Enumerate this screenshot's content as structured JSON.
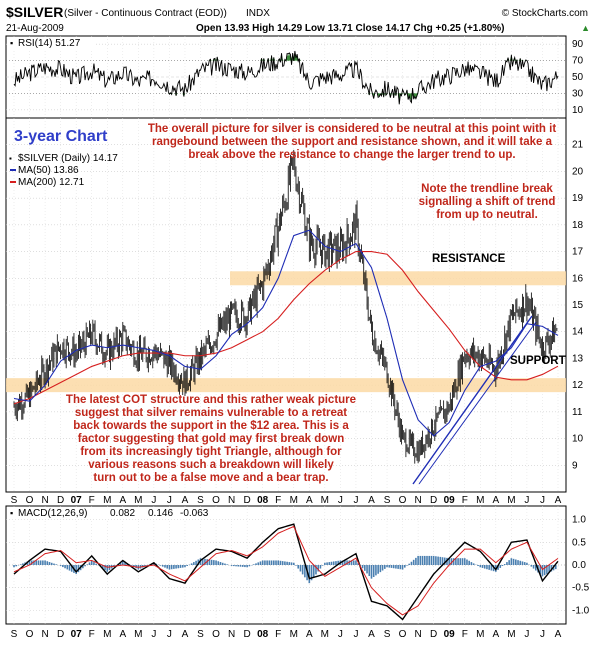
{
  "header": {
    "symbol": "$SILVER",
    "description": "(Silver - Continuous Contract (EOD))",
    "exchange": "INDX",
    "site": "© StockCharts.com",
    "date": "21-Aug-2009",
    "ohlc": "Open 13.93  High 14.29  Low 13.71  Close 14.17  Chg +0.25 (+1.80%)",
    "ohlc_arrow": "▲"
  },
  "rsi_panel": {
    "label": "RSI(14) 51.27",
    "ticks": [
      "90",
      "70",
      "50",
      "30",
      "10"
    ]
  },
  "price_panel": {
    "title_overlay": "3-year Chart",
    "legend": [
      {
        "text": "$SILVER (Daily) 14.17",
        "color": "#000000"
      },
      {
        "text": "MA(50) 13.86",
        "color": "#1f2db5"
      },
      {
        "text": "MA(200) 12.71",
        "color": "#d61f1f"
      }
    ],
    "ticks": [
      "21",
      "20",
      "19",
      "18",
      "17",
      "16",
      "15",
      "14",
      "13",
      "12",
      "11",
      "10",
      "9"
    ],
    "resistance_label": "RESISTANCE",
    "support_label": "SUPPORT",
    "resistance_level": 16,
    "support_level": 12,
    "note_top": [
      "The overall picture for silver is considered to be neutral at this point with it",
      "rangebound between the support and resistance shown, and it will take a",
      "break above the resistance to change the larger trend to up."
    ],
    "note_right": [
      "Note the trendline break",
      "signalling a shift of trend",
      "from up to neutral."
    ],
    "note_bottom": [
      "The latest COT structure and this rather weak picture",
      "suggest that silver remains vulnerable to a retreat",
      "back towards the support in the $12 area. This is a",
      "factor suggesting that gold may first break down",
      "from its increasingly tight Triangle, although for",
      "various reasons such a breakdown will likely",
      "turn out to be a false move and a bear trap."
    ]
  },
  "macd_panel": {
    "label": "MACD(12,26,9)",
    "v1": "0.082",
    "v2": "0.146",
    "v3": "-0.063",
    "ticks": [
      "1.0",
      "0.5",
      "0.0",
      "-0.5",
      "-1.0"
    ]
  },
  "x_axis": {
    "months": [
      "S",
      "O",
      "N",
      "D",
      "07",
      "F",
      "M",
      "A",
      "M",
      "J",
      "J",
      "A",
      "S",
      "O",
      "N",
      "D",
      "08",
      "F",
      "M",
      "A",
      "M",
      "J",
      "J",
      "A",
      "S",
      "O",
      "N",
      "D",
      "09",
      "F",
      "M",
      "A",
      "M",
      "J",
      "J",
      "A"
    ]
  },
  "colors": {
    "price": "#000000",
    "ma50": "#1f2db5",
    "ma200": "#d61f1f",
    "zone": "#fbd9a4",
    "note": "#c0271b",
    "rsi_fill": "#3a8a3a",
    "macd_hist": "#4a7fb0"
  },
  "chart_data": [
    {
      "type": "line",
      "title": "$SILVER (Daily) 14.17",
      "xlabel": "",
      "ylabel": "",
      "ylim": [
        8,
        22
      ],
      "x": [
        "2006-09",
        "2006-10",
        "2006-11",
        "2006-12",
        "2007-01",
        "2007-02",
        "2007-03",
        "2007-04",
        "2007-05",
        "2007-06",
        "2007-07",
        "2007-08",
        "2007-09",
        "2007-10",
        "2007-11",
        "2007-12",
        "2008-01",
        "2008-02",
        "2008-03",
        "2008-04",
        "2008-05",
        "2008-06",
        "2008-07",
        "2008-08",
        "2008-09",
        "2008-10",
        "2008-11",
        "2008-12",
        "2009-01",
        "2009-02",
        "2009-03",
        "2009-04",
        "2009-05",
        "2009-06",
        "2009-07",
        "2009-08"
      ],
      "series": [
        {
          "name": "$SILVER (Daily) 14.17",
          "values": [
            11.2,
            11.6,
            12.6,
            13.5,
            13.2,
            13.9,
            13.2,
            13.8,
            13.1,
            13.3,
            12.8,
            12.1,
            13.0,
            13.9,
            14.6,
            14.6,
            15.8,
            17.9,
            20.3,
            17.4,
            17.0,
            17.1,
            18.0,
            14.0,
            12.5,
            10.0,
            9.5,
            10.5,
            11.2,
            13.2,
            13.1,
            12.6,
            14.5,
            15.2,
            13.4,
            14.17
          ]
        },
        {
          "name": "MA(50) 13.86",
          "values": [
            11.5,
            11.4,
            12.0,
            12.9,
            13.3,
            13.5,
            13.4,
            13.5,
            13.4,
            13.3,
            13.1,
            12.7,
            12.6,
            13.1,
            13.9,
            14.3,
            14.9,
            16.0,
            17.6,
            17.8,
            17.2,
            17.0,
            17.3,
            16.4,
            14.5,
            12.2,
            10.7,
            10.1,
            10.6,
            11.8,
            12.7,
            12.9,
            13.4,
            14.3,
            14.2,
            13.86
          ]
        },
        {
          "name": "MA(200) 12.71",
          "values": [
            11.3,
            11.5,
            11.8,
            12.1,
            12.4,
            12.7,
            12.9,
            13.1,
            13.2,
            13.2,
            13.2,
            13.1,
            13.1,
            13.2,
            13.4,
            13.7,
            14.0,
            14.5,
            15.2,
            15.8,
            16.3,
            16.7,
            17.0,
            17.0,
            16.9,
            16.3,
            15.5,
            14.8,
            14.1,
            13.3,
            12.7,
            12.3,
            12.2,
            12.2,
            12.4,
            12.71
          ]
        }
      ]
    },
    {
      "type": "line",
      "title": "RSI(14) 51.27",
      "xlabel": "",
      "ylabel": "",
      "ylim": [
        10,
        90
      ],
      "x": [
        "2006-09",
        "2006-10",
        "2006-11",
        "2006-12",
        "2007-01",
        "2007-02",
        "2007-03",
        "2007-04",
        "2007-05",
        "2007-06",
        "2007-07",
        "2007-08",
        "2007-09",
        "2007-10",
        "2007-11",
        "2007-12",
        "2008-01",
        "2008-02",
        "2008-03",
        "2008-04",
        "2008-05",
        "2008-06",
        "2008-07",
        "2008-08",
        "2008-09",
        "2008-10",
        "2008-11",
        "2008-12",
        "2009-01",
        "2009-02",
        "2009-03",
        "2009-04",
        "2009-05",
        "2009-06",
        "2009-07",
        "2009-08"
      ],
      "series": [
        {
          "name": "RSI(14) 51.27",
          "values": [
            45,
            55,
            62,
            60,
            48,
            58,
            45,
            55,
            44,
            50,
            40,
            35,
            58,
            64,
            60,
            55,
            64,
            70,
            76,
            44,
            50,
            53,
            60,
            30,
            36,
            24,
            33,
            46,
            52,
            60,
            55,
            45,
            68,
            60,
            40,
            51.27
          ]
        }
      ]
    },
    {
      "type": "line",
      "title": "MACD(12,26,9)",
      "xlabel": "",
      "ylabel": "",
      "ylim": [
        -1.3,
        1.3
      ],
      "x": [
        "2006-09",
        "2006-10",
        "2006-11",
        "2006-12",
        "2007-01",
        "2007-02",
        "2007-03",
        "2007-04",
        "2007-05",
        "2007-06",
        "2007-07",
        "2007-08",
        "2007-09",
        "2007-10",
        "2007-11",
        "2007-12",
        "2008-01",
        "2008-02",
        "2008-03",
        "2008-04",
        "2008-05",
        "2008-06",
        "2008-07",
        "2008-08",
        "2008-09",
        "2008-10",
        "2008-11",
        "2008-12",
        "2009-01",
        "2009-02",
        "2009-03",
        "2009-04",
        "2009-05",
        "2009-06",
        "2009-07",
        "2009-08"
      ],
      "series": [
        {
          "name": "MACD",
          "values": [
            -0.2,
            0.1,
            0.35,
            0.3,
            -0.15,
            0.2,
            -0.2,
            0.1,
            -0.15,
            0.05,
            -0.3,
            -0.4,
            0.1,
            0.35,
            0.3,
            0.15,
            0.5,
            0.8,
            0.9,
            -0.3,
            -0.2,
            0.05,
            0.25,
            -0.8,
            -0.9,
            -1.2,
            -0.7,
            -0.2,
            0.15,
            0.5,
            0.3,
            -0.1,
            0.5,
            0.55,
            -0.35,
            0.082
          ]
        },
        {
          "name": "Signal",
          "values": [
            -0.15,
            0.0,
            0.25,
            0.32,
            0.05,
            0.1,
            -0.05,
            0.0,
            -0.05,
            0.0,
            -0.2,
            -0.35,
            -0.05,
            0.25,
            0.32,
            0.2,
            0.4,
            0.7,
            0.85,
            0.1,
            -0.25,
            -0.05,
            0.15,
            -0.5,
            -0.85,
            -1.1,
            -0.9,
            -0.4,
            0.0,
            0.35,
            0.35,
            0.05,
            0.35,
            0.5,
            -0.1,
            0.146
          ]
        }
      ]
    }
  ]
}
